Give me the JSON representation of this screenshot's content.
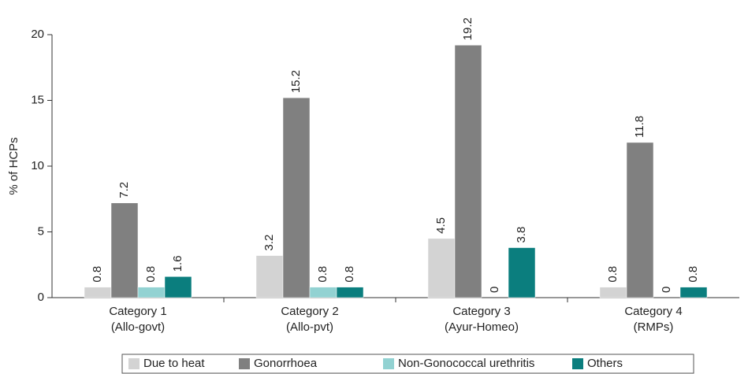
{
  "chart_data": {
    "type": "bar",
    "y_label": "% of HCPs",
    "categories": [
      [
        "Category 1",
        "(Allo-govt)"
      ],
      [
        "Category 2",
        "(Allo-pvt)"
      ],
      [
        "Category 3",
        "(Ayur-Homeo)"
      ],
      [
        "Category 4",
        "(RMPs)"
      ]
    ],
    "series": [
      {
        "name": "Due to heat",
        "color": "#d3d3d3",
        "values": [
          0.8,
          3.2,
          4.5,
          0.8
        ]
      },
      {
        "name": "Gonorrhoea",
        "color": "#808080",
        "values": [
          7.2,
          15.2,
          19.2,
          11.8
        ]
      },
      {
        "name": "Non-Gonococcal urethritis",
        "color": "#92d2d2",
        "values": [
          0.8,
          0.8,
          0,
          0
        ]
      },
      {
        "name": "Others",
        "color": "#0b7e7e",
        "values": [
          1.6,
          0.8,
          3.8,
          0.8
        ]
      }
    ],
    "ylim": [
      0,
      20
    ],
    "yticks": [
      0,
      5,
      10,
      15,
      20
    ],
    "grid": false,
    "legend": "bottom"
  }
}
